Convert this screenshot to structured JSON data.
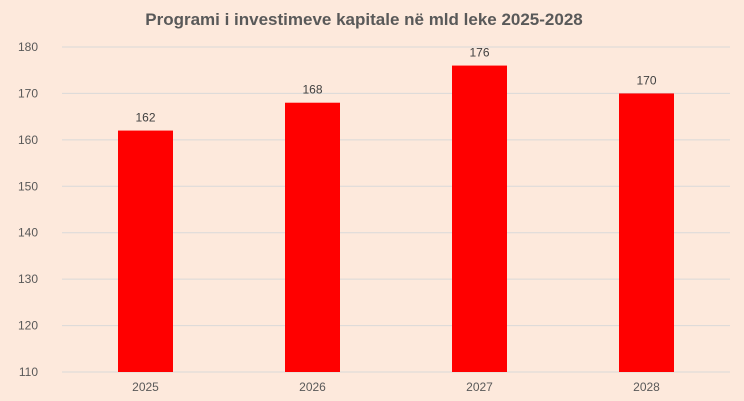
{
  "chart_data": {
    "type": "bar",
    "title": "Programi i investimeve kapitale në mld leke 2025-2028",
    "categories": [
      "2025",
      "2026",
      "2027",
      "2028"
    ],
    "values": [
      162,
      168,
      176,
      170
    ],
    "xlabel": "",
    "ylabel": "",
    "ylim": [
      110,
      180
    ],
    "yticks": [
      110,
      120,
      130,
      140,
      150,
      160,
      170,
      180
    ],
    "grid": true,
    "legend": "none",
    "bar_color": "#ff0000",
    "background_color": "#fde9dc"
  }
}
